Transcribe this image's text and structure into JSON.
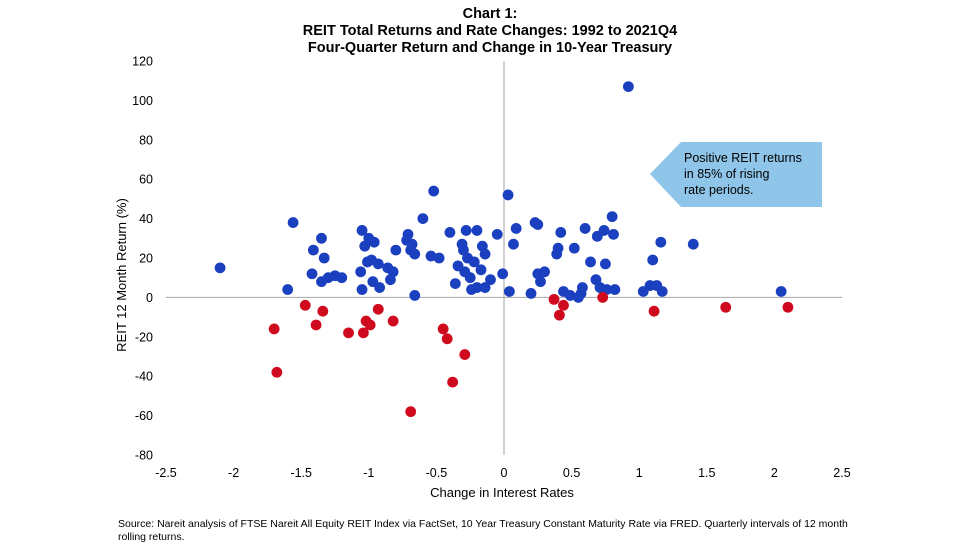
{
  "chart_data": {
    "type": "scatter",
    "title_lines": [
      "Chart 1:",
      "REIT Total Returns and Rate Changes: 1992 to 2021Q4",
      "Four-Quarter Return and Change in 10-Year Treasury"
    ],
    "xlabel": "Change in Interest Rates",
    "ylabel": "REIT 12 Month Return (%)",
    "xlim": [
      -2.5,
      2.5
    ],
    "ylim": [
      -80,
      120
    ],
    "x_ticks": [
      -2.5,
      -2,
      -1.5,
      -1,
      -0.5,
      0,
      0.5,
      1,
      1.5,
      2,
      2.5
    ],
    "y_ticks": [
      -80,
      -60,
      -40,
      -20,
      0,
      20,
      40,
      60,
      80,
      100,
      120
    ],
    "grid": false,
    "annotation": "Positive REIT returns in 85% of rising rate periods.",
    "source": "Source: Nareit analysis of FTSE Nareit All Equity REIT Index via FactSet, 10 Year Treasury Constant Maturity Rate via FRED. Quarterly intervals of 12 month rolling returns.",
    "colors": {
      "positive": "#1a3fbf",
      "negative": "#d00a1e",
      "axis": "#a6a6a6",
      "callout": "#8ec5e8"
    },
    "series": [
      {
        "color": "#1a3fbf",
        "points": [
          [
            -2.1,
            15
          ],
          [
            -1.6,
            4
          ],
          [
            -1.56,
            38
          ],
          [
            -1.42,
            12
          ],
          [
            -1.41,
            24
          ],
          [
            -1.35,
            30
          ],
          [
            -1.33,
            20
          ],
          [
            -1.35,
            8
          ],
          [
            -1.3,
            10
          ],
          [
            -1.25,
            11
          ],
          [
            -1.2,
            10
          ],
          [
            -1.06,
            13
          ],
          [
            -1.05,
            4
          ],
          [
            -1.05,
            34
          ],
          [
            -1.03,
            26
          ],
          [
            -1.01,
            18
          ],
          [
            -1.0,
            30
          ],
          [
            -0.98,
            19
          ],
          [
            -0.97,
            8
          ],
          [
            -0.96,
            28
          ],
          [
            -0.93,
            17
          ],
          [
            -0.92,
            5
          ],
          [
            -0.86,
            15
          ],
          [
            -0.84,
            9
          ],
          [
            -0.82,
            13
          ],
          [
            -0.8,
            24
          ],
          [
            -0.72,
            29
          ],
          [
            -0.71,
            32
          ],
          [
            -0.69,
            24
          ],
          [
            -0.68,
            27
          ],
          [
            -0.66,
            22
          ],
          [
            -0.66,
            1
          ],
          [
            -0.6,
            40
          ],
          [
            -0.54,
            21
          ],
          [
            -0.52,
            54
          ],
          [
            -0.48,
            20
          ],
          [
            -0.4,
            33
          ],
          [
            -0.36,
            7
          ],
          [
            -0.34,
            16
          ],
          [
            -0.31,
            27
          ],
          [
            -0.3,
            24
          ],
          [
            -0.29,
            13
          ],
          [
            -0.28,
            34
          ],
          [
            -0.27,
            20
          ],
          [
            -0.25,
            10
          ],
          [
            -0.24,
            4
          ],
          [
            -0.22,
            18
          ],
          [
            -0.2,
            34
          ],
          [
            -0.2,
            5
          ],
          [
            -0.17,
            14
          ],
          [
            -0.16,
            26
          ],
          [
            -0.14,
            5
          ],
          [
            -0.14,
            22
          ],
          [
            -0.1,
            9
          ],
          [
            -0.05,
            32
          ],
          [
            -0.01,
            12
          ],
          [
            0.03,
            52
          ],
          [
            0.04,
            3
          ],
          [
            0.07,
            27
          ],
          [
            0.09,
            35
          ],
          [
            0.2,
            2
          ],
          [
            0.23,
            38
          ],
          [
            0.25,
            37
          ],
          [
            0.25,
            12
          ],
          [
            0.27,
            8
          ],
          [
            0.3,
            13
          ],
          [
            0.39,
            22
          ],
          [
            0.4,
            25
          ],
          [
            0.42,
            33
          ],
          [
            0.44,
            3
          ],
          [
            0.49,
            1
          ],
          [
            0.52,
            25
          ],
          [
            0.55,
            0
          ],
          [
            0.57,
            2
          ],
          [
            0.58,
            5
          ],
          [
            0.6,
            35
          ],
          [
            0.64,
            18
          ],
          [
            0.68,
            9
          ],
          [
            0.69,
            31
          ],
          [
            0.71,
            5
          ],
          [
            0.74,
            34
          ],
          [
            0.75,
            17
          ],
          [
            0.76,
            4
          ],
          [
            0.8,
            41
          ],
          [
            0.81,
            32
          ],
          [
            0.82,
            4
          ],
          [
            0.92,
            107
          ],
          [
            1.03,
            3
          ],
          [
            1.08,
            6
          ],
          [
            1.1,
            19
          ],
          [
            1.13,
            6
          ],
          [
            1.16,
            28
          ],
          [
            1.17,
            3
          ],
          [
            1.4,
            27
          ],
          [
            2.05,
            3
          ]
        ]
      },
      {
        "color": "#d00a1e",
        "points": [
          [
            -1.7,
            -16
          ],
          [
            -1.68,
            -38
          ],
          [
            -1.47,
            -4
          ],
          [
            -1.39,
            -14
          ],
          [
            -1.34,
            -7
          ],
          [
            -1.15,
            -18
          ],
          [
            -1.04,
            -18
          ],
          [
            -1.02,
            -12
          ],
          [
            -0.99,
            -14
          ],
          [
            -0.93,
            -6
          ],
          [
            -0.82,
            -12
          ],
          [
            -0.69,
            -58
          ],
          [
            -0.45,
            -16
          ],
          [
            -0.42,
            -21
          ],
          [
            -0.38,
            -43
          ],
          [
            -0.29,
            -29
          ],
          [
            0.37,
            -1
          ],
          [
            0.41,
            -9
          ],
          [
            0.44,
            -4
          ],
          [
            0.73,
            0
          ],
          [
            1.11,
            -7
          ],
          [
            1.64,
            -5
          ],
          [
            2.1,
            -5
          ]
        ]
      }
    ]
  }
}
